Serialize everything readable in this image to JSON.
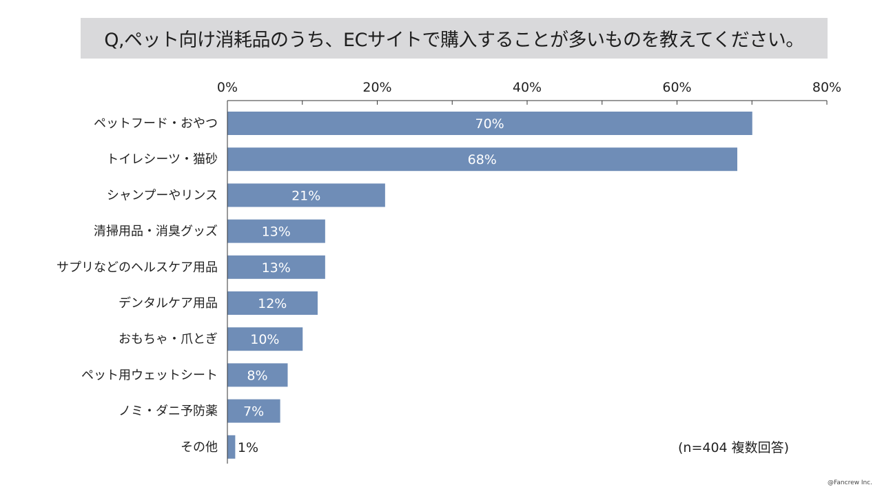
{
  "title": "Q,ペット向け消耗品のうち、ECサイトで購入することが多いものを教えてください。",
  "note": "(n=404 複数回答)",
  "copyright": "@Fancrew Inc.",
  "colors": {
    "bar": "#6f8db7",
    "title_bg": "#d9d9db",
    "axis": "#333333"
  },
  "chart_data": {
    "type": "bar",
    "orientation": "horizontal",
    "categories": [
      "ペットフード・おやつ",
      "トイレシーツ・猫砂",
      "シャンプーやリンス",
      "清掃用品・消臭グッズ",
      "サプリなどのヘルスケア用品",
      "デンタルケア用品",
      "おもちゃ・爪とぎ",
      "ペット用ウェットシート",
      "ノミ・ダニ予防薬",
      "その他"
    ],
    "values": [
      70,
      68,
      21,
      13,
      13,
      12,
      10,
      8,
      7,
      1
    ],
    "value_labels": [
      "70%",
      "68%",
      "21%",
      "13%",
      "13%",
      "12%",
      "10%",
      "8%",
      "7%",
      "1%"
    ],
    "xlim": [
      0,
      80
    ],
    "x_ticks": [
      0,
      20,
      40,
      60,
      80
    ],
    "x_tick_labels": [
      "0%",
      "20%",
      "40%",
      "60%",
      "80%"
    ],
    "axis_position": "top",
    "grid": false,
    "legend": false
  }
}
